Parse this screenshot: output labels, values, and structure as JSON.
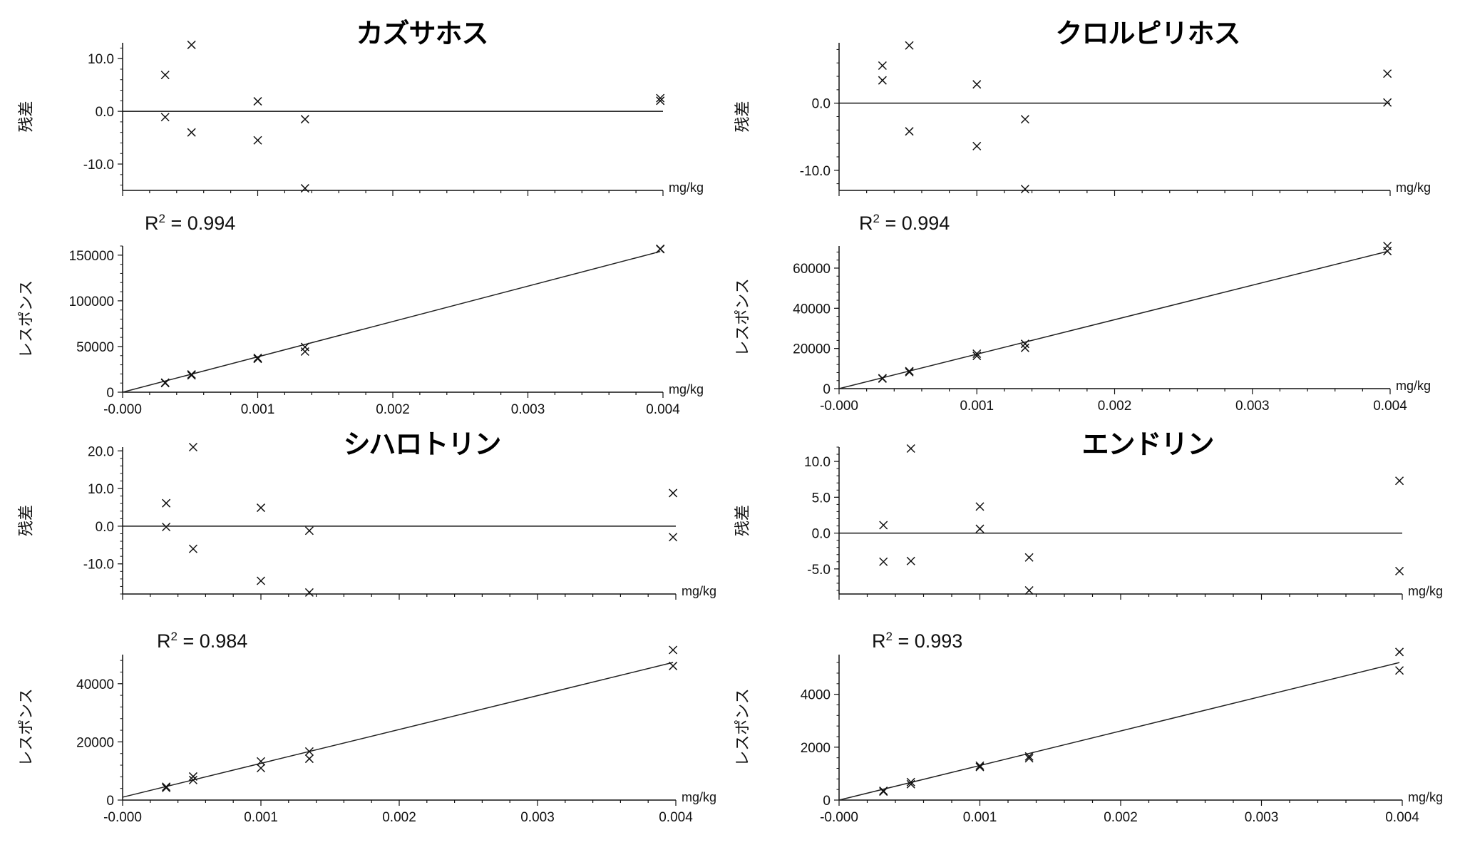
{
  "chart_data": [
    {
      "title": "カズサホス",
      "residual": {
        "type": "scatter",
        "ylabel": "残差",
        "xlabel": "mg/kg",
        "ylim": [
          -15,
          13
        ],
        "yticks": [
          "10.0",
          "0.0",
          "-10.0"
        ],
        "ytick_values": [
          10,
          0,
          -10
        ],
        "xlim": [
          0,
          0.004
        ],
        "x": [
          0.000315,
          0.000315,
          0.00051,
          0.00051,
          0.001,
          0.001,
          0.00135,
          0.00135,
          0.00398,
          0.00398
        ],
        "y": [
          6.9,
          -1.1,
          12.6,
          -4.0,
          1.9,
          -5.5,
          -1.5,
          -14.6,
          2.5,
          2.0
        ]
      },
      "response": {
        "type": "scatter",
        "ylabel": "レスポンス",
        "xlabel": "mg/kg",
        "r2_label": "R",
        "r2_sup": "2",
        "r2_text": " = 0.994",
        "ylim": [
          0,
          160000
        ],
        "yticks": [
          "150000",
          "100000",
          "50000",
          "0"
        ],
        "ytick_values": [
          150000,
          100000,
          50000,
          0
        ],
        "xlim": [
          0,
          0.004
        ],
        "xticks": [
          "-0.000",
          "0.001",
          "0.002",
          "0.003",
          "0.004"
        ],
        "xtick_values": [
          0,
          0.001,
          0.002,
          0.003,
          0.004
        ],
        "x": [
          0.000315,
          0.000315,
          0.00051,
          0.00051,
          0.001,
          0.001,
          0.00135,
          0.00135,
          0.00398,
          0.00398
        ],
        "y": [
          10500,
          10000,
          19500,
          18500,
          37500,
          36500,
          49500,
          44500,
          157000,
          156500
        ],
        "fit": {
          "x": [
            0,
            0.00398
          ],
          "y": [
            0,
            154000
          ]
        }
      }
    },
    {
      "title": "クロルピリホス",
      "residual": {
        "type": "scatter",
        "ylabel": "残差",
        "xlabel": "mg/kg",
        "ylim": [
          -13,
          9
        ],
        "yticks": [
          "0.0",
          "-10.0"
        ],
        "ytick_values": [
          0,
          -10
        ],
        "xlim": [
          0,
          0.004
        ],
        "x": [
          0.000315,
          0.000315,
          0.00051,
          0.00051,
          0.001,
          0.001,
          0.00135,
          0.00135,
          0.00398,
          0.00398
        ],
        "y": [
          5.6,
          3.4,
          8.6,
          -4.2,
          2.8,
          -6.4,
          -2.4,
          -12.8,
          4.4,
          0.1
        ]
      },
      "response": {
        "type": "scatter",
        "ylabel": "レスポンス",
        "xlabel": "mg/kg",
        "r2_label": "R",
        "r2_sup": "2",
        "r2_text": " = 0.994",
        "ylim": [
          0,
          71000
        ],
        "yticks": [
          "60000",
          "40000",
          "20000",
          "0"
        ],
        "ytick_values": [
          60000,
          40000,
          20000,
          0
        ],
        "xlim": [
          0,
          0.004
        ],
        "xticks": [
          "-0.000",
          "0.001",
          "0.002",
          "0.003",
          "0.004"
        ],
        "xtick_values": [
          0,
          0.001,
          0.002,
          0.003,
          0.004
        ],
        "x": [
          0.000315,
          0.000315,
          0.00051,
          0.00051,
          0.001,
          0.001,
          0.00135,
          0.00135,
          0.00398,
          0.00398
        ],
        "y": [
          5200,
          5000,
          8700,
          8200,
          17400,
          16300,
          22300,
          20300,
          71000,
          68500
        ],
        "fit": {
          "x": [
            0,
            0.00398
          ],
          "y": [
            0,
            68300
          ]
        }
      }
    },
    {
      "title": "シハロトリン",
      "residual": {
        "type": "scatter",
        "ylabel": "残差",
        "xlabel": "mg/kg",
        "ylim": [
          -18,
          21
        ],
        "yticks": [
          "20.0",
          "10.0",
          "0.0",
          "-10.0"
        ],
        "ytick_values": [
          20,
          10,
          0,
          -10
        ],
        "xlim": [
          0,
          0.004
        ],
        "x": [
          0.000315,
          0.000315,
          0.00051,
          0.00051,
          0.001,
          0.001,
          0.00135,
          0.00135,
          0.00398,
          0.00398
        ],
        "y": [
          6.1,
          -0.2,
          21.0,
          -6.0,
          4.9,
          -14.5,
          -1.2,
          -17.6,
          8.8,
          -2.9
        ]
      },
      "response": {
        "type": "scatter",
        "ylabel": "レスポンス",
        "xlabel": "mg/kg",
        "r2_label": "R",
        "r2_sup": "2",
        "r2_text": " = 0.984",
        "ylim": [
          0,
          50000
        ],
        "yticks": [
          "40000",
          "20000",
          "0"
        ],
        "ytick_values": [
          40000,
          20000,
          0
        ],
        "xlim": [
          0,
          0.004
        ],
        "xticks": [
          "-0.000",
          "0.001",
          "0.002",
          "0.003",
          "0.004"
        ],
        "xtick_values": [
          0,
          0.001,
          0.002,
          0.003,
          0.004
        ],
        "x": [
          0.000315,
          0.000315,
          0.00051,
          0.00051,
          0.001,
          0.001,
          0.00135,
          0.00135,
          0.00398,
          0.00398
        ],
        "y": [
          4600,
          4200,
          8100,
          6900,
          13300,
          11000,
          16700,
          14200,
          51600,
          46100
        ],
        "fit": {
          "x": [
            0,
            0.00398
          ],
          "y": [
            1000,
            47300
          ]
        }
      }
    },
    {
      "title": "エンドリン",
      "residual": {
        "type": "scatter",
        "ylabel": "残差",
        "xlabel": "mg/kg",
        "ylim": [
          -8.5,
          12
        ],
        "yticks": [
          "10.0",
          "5.0",
          "0.0",
          "-5.0"
        ],
        "ytick_values": [
          10,
          5,
          0,
          -5
        ],
        "xlim": [
          0,
          0.004
        ],
        "x": [
          0.000315,
          0.000315,
          0.00051,
          0.00051,
          0.001,
          0.001,
          0.00135,
          0.00135,
          0.00398,
          0.00398
        ],
        "y": [
          1.1,
          -4.0,
          11.8,
          -3.9,
          3.7,
          0.6,
          -3.4,
          -8.0,
          7.3,
          -5.3
        ]
      },
      "response": {
        "type": "scatter",
        "ylabel": "レスポンス",
        "xlabel": "mg/kg",
        "r2_label": "R",
        "r2_sup": "2",
        "r2_text": " = 0.993",
        "ylim": [
          0,
          5500
        ],
        "yticks": [
          "4000",
          "2000",
          "0"
        ],
        "ytick_values": [
          4000,
          2000,
          0
        ],
        "xlim": [
          0,
          0.004
        ],
        "xticks": [
          "-0.000",
          "0.001",
          "0.002",
          "0.003",
          "0.004"
        ],
        "xtick_values": [
          0,
          0.001,
          0.002,
          0.003,
          0.004
        ],
        "x": [
          0.000315,
          0.000315,
          0.00051,
          0.00051,
          0.001,
          0.001,
          0.00135,
          0.00135,
          0.00398,
          0.00398
        ],
        "y": [
          350,
          320,
          680,
          600,
          1300,
          1250,
          1650,
          1580,
          5600,
          4900
        ],
        "fit": {
          "x": [
            0,
            0.00398
          ],
          "y": [
            0,
            5200
          ]
        }
      }
    }
  ]
}
